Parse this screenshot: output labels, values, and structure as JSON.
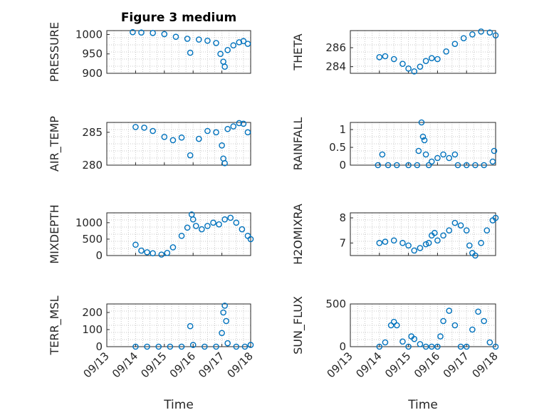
{
  "figure_title": "Figure 3 medium",
  "chart_data": [
    {
      "type": "scatter",
      "name": "pressure",
      "ylabel": "PRESSURE",
      "ylim": [
        900,
        1010
      ],
      "yticks": [
        900,
        950,
        1000
      ],
      "x": [
        13.9,
        14.2,
        14.6,
        15.0,
        15.4,
        15.8,
        15.9,
        16.2,
        16.5,
        16.8,
        16.95,
        17.05,
        17.1,
        17.2,
        17.4,
        17.6,
        17.75,
        17.9
      ],
      "y": [
        1006,
        1005,
        1004,
        1001,
        994,
        989,
        953,
        987,
        984,
        978,
        950,
        930,
        917,
        960,
        972,
        980,
        983,
        976
      ]
    },
    {
      "type": "scatter",
      "name": "theta",
      "ylabel": "THETA",
      "ylim": [
        283.3,
        287.8
      ],
      "yticks": [
        284,
        286
      ],
      "x": [
        14.0,
        14.2,
        14.5,
        14.8,
        15.0,
        15.2,
        15.4,
        15.6,
        15.8,
        16.0,
        16.3,
        16.6,
        16.9,
        17.2,
        17.5,
        17.8,
        18.0
      ],
      "y": [
        285.0,
        285.1,
        284.8,
        284.3,
        283.8,
        283.5,
        284.0,
        284.6,
        284.9,
        284.8,
        285.6,
        286.4,
        287.0,
        287.4,
        287.7,
        287.6,
        287.3
      ]
    },
    {
      "type": "scatter",
      "name": "air_temp",
      "ylabel": "AIR_TEMP",
      "ylim": [
        280,
        286.5
      ],
      "yticks": [
        280,
        285
      ],
      "x": [
        14.0,
        14.3,
        14.6,
        15.0,
        15.3,
        15.6,
        15.9,
        16.2,
        16.5,
        16.8,
        17.0,
        17.05,
        17.1,
        17.2,
        17.4,
        17.6,
        17.75,
        17.9
      ],
      "y": [
        285.8,
        285.7,
        285.2,
        284.3,
        283.8,
        284.2,
        281.5,
        284.0,
        285.2,
        285.0,
        283.0,
        281.0,
        280.3,
        285.5,
        285.9,
        286.4,
        286.3,
        285.0
      ]
    },
    {
      "type": "scatter",
      "name": "rainfall",
      "ylabel": "RAINFALL",
      "ylim": [
        0,
        1.2
      ],
      "yticks": [
        0,
        0.5,
        1
      ],
      "x": [
        13.95,
        14.1,
        14.3,
        14.6,
        15.0,
        15.3,
        15.35,
        15.45,
        15.5,
        15.55,
        15.6,
        15.7,
        15.8,
        16.0,
        16.2,
        16.4,
        16.6,
        16.7,
        17.0,
        17.3,
        17.6,
        17.9,
        17.95
      ],
      "y": [
        0,
        0.3,
        0,
        0,
        0,
        0,
        0.4,
        1.2,
        0.8,
        0.7,
        0.3,
        0,
        0.1,
        0.2,
        0.3,
        0.2,
        0.3,
        0,
        0,
        0,
        0,
        0.1,
        0.4
      ]
    },
    {
      "type": "scatter",
      "name": "mixdepth",
      "ylabel": "MIXDEPTH",
      "ylim": [
        0,
        1300
      ],
      "yticks": [
        0,
        500,
        1000
      ],
      "x": [
        14.0,
        14.2,
        14.4,
        14.6,
        14.9,
        15.1,
        15.3,
        15.6,
        15.8,
        15.95,
        16.0,
        16.1,
        16.3,
        16.5,
        16.7,
        16.9,
        17.1,
        17.3,
        17.5,
        17.7,
        17.9,
        18.0
      ],
      "y": [
        330,
        150,
        100,
        70,
        30,
        80,
        250,
        600,
        850,
        1250,
        1100,
        900,
        800,
        900,
        1000,
        950,
        1100,
        1150,
        1000,
        800,
        600,
        500
      ]
    },
    {
      "type": "scatter",
      "name": "h2omixra",
      "ylabel": "H2OMIXRA",
      "ylim": [
        6.5,
        8.2
      ],
      "yticks": [
        7,
        8
      ],
      "x": [
        14.0,
        14.2,
        14.5,
        14.8,
        15.0,
        15.2,
        15.4,
        15.6,
        15.7,
        15.8,
        15.9,
        16.0,
        16.2,
        16.4,
        16.6,
        16.8,
        17.0,
        17.1,
        17.2,
        17.3,
        17.5,
        17.7,
        17.9,
        18.0
      ],
      "y": [
        7.0,
        7.05,
        7.1,
        7.0,
        6.9,
        6.7,
        6.8,
        6.95,
        7.0,
        7.3,
        7.4,
        7.1,
        7.3,
        7.5,
        7.8,
        7.7,
        7.5,
        6.9,
        6.6,
        6.5,
        7.0,
        7.5,
        7.9,
        8.0
      ]
    },
    {
      "type": "scatter",
      "name": "terr_msl",
      "ylabel": "TERR_MSL",
      "ylim": [
        0,
        250
      ],
      "yticks": [
        0,
        100,
        200
      ],
      "x": [
        14.0,
        14.4,
        14.8,
        15.2,
        15.6,
        15.9,
        16.0,
        16.4,
        16.8,
        17.0,
        17.05,
        17.1,
        17.15,
        17.2,
        17.5,
        17.8,
        18.0
      ],
      "y": [
        0,
        0,
        0,
        0,
        0,
        120,
        10,
        0,
        0,
        80,
        200,
        240,
        150,
        20,
        0,
        0,
        10
      ]
    },
    {
      "type": "scatter",
      "name": "sun_flux",
      "ylabel": "SUN_FLUX",
      "ylim": [
        0,
        500
      ],
      "yticks": [
        0,
        500
      ],
      "x": [
        14.0,
        14.2,
        14.4,
        14.5,
        14.6,
        14.8,
        15.0,
        15.1,
        15.2,
        15.4,
        15.6,
        15.8,
        16.0,
        16.1,
        16.2,
        16.4,
        16.6,
        16.8,
        17.0,
        17.2,
        17.4,
        17.6,
        17.8,
        18.0
      ],
      "y": [
        0,
        50,
        250,
        290,
        250,
        60,
        0,
        120,
        90,
        30,
        0,
        0,
        0,
        120,
        300,
        420,
        250,
        0,
        0,
        200,
        410,
        300,
        50,
        0
      ]
    }
  ],
  "x_axis": {
    "label": "Time",
    "ticks": [
      "09/13",
      "09/14",
      "09/15",
      "09/16",
      "09/17",
      "09/18"
    ]
  }
}
